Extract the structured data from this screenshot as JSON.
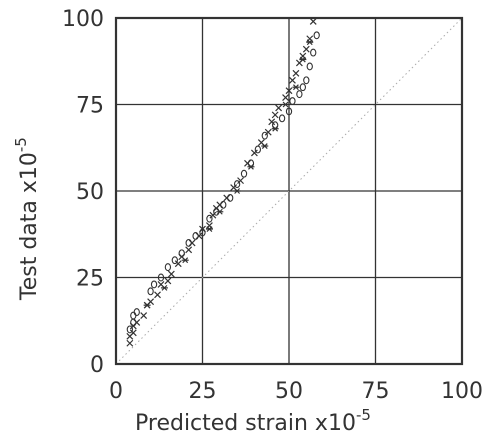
{
  "chart_data": {
    "type": "scatter",
    "title": "",
    "xlabel": "Predicted strain x10",
    "xlabel_exponent": "-5",
    "ylabel": "Test data x10",
    "ylabel_exponent": "-5",
    "xlim": [
      0,
      100
    ],
    "ylim": [
      0,
      100
    ],
    "x_ticks": [
      "0",
      "25",
      "50",
      "75",
      "100"
    ],
    "y_ticks": [
      "0",
      "25",
      "50",
      "75",
      "100"
    ],
    "grid": true,
    "reference_line": {
      "from": [
        0,
        0
      ],
      "to": [
        100,
        100
      ],
      "style": "dotted"
    },
    "colors": {
      "ink": "#333333",
      "grid": "#333333",
      "reference": "#aaaaaa"
    },
    "series": [
      {
        "marker": "x",
        "points": [
          [
            4,
            6
          ],
          [
            4,
            8
          ],
          [
            5,
            9
          ],
          [
            5,
            11
          ],
          [
            6,
            12
          ],
          [
            8,
            14
          ],
          [
            9,
            17
          ],
          [
            10,
            18
          ],
          [
            12,
            20
          ],
          [
            13,
            23
          ],
          [
            15,
            24
          ],
          [
            16,
            26
          ],
          [
            18,
            29
          ],
          [
            19,
            31
          ],
          [
            21,
            33
          ],
          [
            22,
            35
          ],
          [
            24,
            37
          ],
          [
            25,
            39
          ],
          [
            27,
            40
          ],
          [
            28,
            43
          ],
          [
            29,
            45
          ],
          [
            30,
            46
          ],
          [
            32,
            48
          ],
          [
            34,
            51
          ],
          [
            36,
            53
          ],
          [
            38,
            58
          ],
          [
            40,
            61
          ],
          [
            42,
            64
          ],
          [
            44,
            67
          ],
          [
            45,
            70
          ],
          [
            46,
            72
          ],
          [
            47,
            74
          ],
          [
            49,
            77
          ],
          [
            50,
            79
          ],
          [
            51,
            82
          ],
          [
            52,
            84
          ],
          [
            53,
            87
          ],
          [
            54,
            89
          ],
          [
            55,
            91
          ],
          [
            56,
            94
          ],
          [
            57,
            99
          ]
        ]
      },
      {
        "marker": "o",
        "points": [
          [
            4,
            10
          ],
          [
            5,
            12
          ],
          [
            5,
            14
          ],
          [
            6,
            15
          ],
          [
            10,
            21
          ],
          [
            11,
            23
          ],
          [
            13,
            25
          ],
          [
            15,
            28
          ],
          [
            17,
            30
          ],
          [
            19,
            32
          ],
          [
            21,
            35
          ],
          [
            23,
            37
          ],
          [
            25,
            38
          ],
          [
            27,
            42
          ],
          [
            29,
            44
          ],
          [
            31,
            46
          ],
          [
            33,
            48
          ],
          [
            35,
            52
          ],
          [
            37,
            55
          ],
          [
            39,
            58
          ],
          [
            41,
            62
          ],
          [
            43,
            66
          ],
          [
            46,
            69
          ],
          [
            48,
            71
          ],
          [
            50,
            73
          ],
          [
            51,
            76
          ],
          [
            53,
            78
          ],
          [
            54,
            80
          ],
          [
            55,
            82
          ],
          [
            56,
            86
          ],
          [
            57,
            90
          ],
          [
            58,
            95
          ]
        ]
      },
      {
        "marker": "*",
        "points": [
          [
            9,
            17
          ],
          [
            14,
            22
          ],
          [
            20,
            30
          ],
          [
            27,
            39
          ],
          [
            30,
            44
          ],
          [
            35,
            50
          ],
          [
            39,
            57
          ],
          [
            43,
            63
          ],
          [
            46,
            68
          ],
          [
            49,
            75
          ],
          [
            52,
            80
          ],
          [
            54,
            88
          ],
          [
            56,
            93
          ]
        ]
      }
    ]
  }
}
